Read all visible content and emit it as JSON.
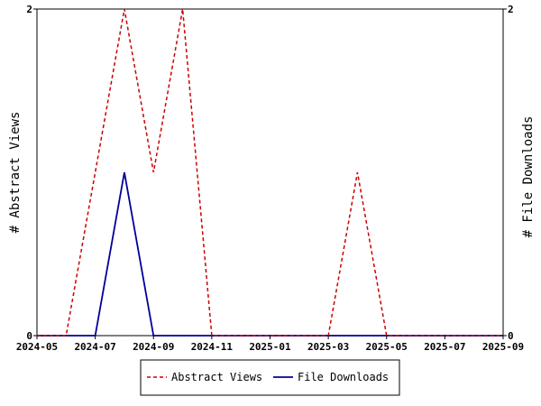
{
  "chart_data": {
    "type": "line",
    "x": [
      "2024-05",
      "2024-06",
      "2024-07",
      "2024-08",
      "2024-09",
      "2024-10",
      "2024-11",
      "2024-12",
      "2025-01",
      "2025-02",
      "2025-03",
      "2025-04",
      "2025-05",
      "2025-06",
      "2025-07",
      "2025-08",
      "2025-09"
    ],
    "x_ticks": [
      "2024-05",
      "2024-07",
      "2024-09",
      "2024-11",
      "2025-01",
      "2025-03",
      "2025-05",
      "2025-07",
      "2025-09"
    ],
    "series": [
      {
        "name": "Abstract Views",
        "axis": "left",
        "color": "#cc0000",
        "dash": "dashed",
        "values": [
          0,
          0,
          1,
          2,
          1,
          2,
          0,
          0,
          0,
          0,
          0,
          1,
          0,
          0,
          0,
          0,
          0
        ]
      },
      {
        "name": "File Downloads",
        "axis": "right",
        "color": "#000099",
        "dash": "solid",
        "values": [
          0,
          0,
          0,
          1,
          0,
          0,
          0,
          0,
          0,
          0,
          0,
          0,
          0,
          0,
          0,
          0,
          0
        ]
      }
    ],
    "ylabel_left": "# Abstract Views",
    "ylabel_right": "# File Downloads",
    "ylim_left": [
      0,
      2
    ],
    "ylim_right": [
      0,
      2
    ],
    "yticks_left": [
      "0",
      "2"
    ],
    "yticks_right": [
      "0",
      "2"
    ],
    "grid": false,
    "legend_position": "bottom"
  }
}
